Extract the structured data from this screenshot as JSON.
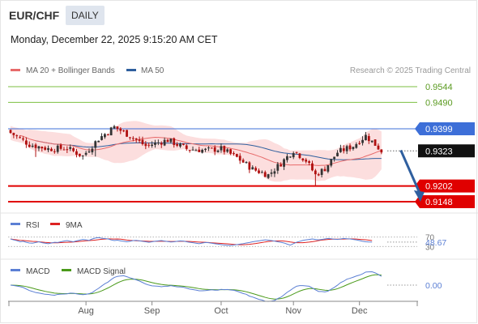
{
  "header": {
    "symbol": "EUR/CHF",
    "timeframe": "DAILY",
    "datetime": "Monday, December 22, 2025 9:15:20 AM CET"
  },
  "colors": {
    "ma20": "#e76a6a",
    "bands": "#fcdede",
    "ma50": "#2e5f9e",
    "target_green": "#7bbf41",
    "support_red": "#e00000",
    "pivot_blue": "#3d6fd8",
    "candle_up": "#333333",
    "candle_down": "#b01010",
    "rsi": "#5b7fd4",
    "rsi_ma": "#dd2222",
    "macd": "#5b7fd4",
    "macd_signal": "#4a9a1a",
    "arrow": "#2f5f9f"
  },
  "chart_data": {
    "type": "candlestick",
    "main": {
      "legend": [
        {
          "label": "MA 20 + Bollinger Bands",
          "color": "#e76a6a"
        },
        {
          "label": "MA 50",
          "color": "#2e5f9e"
        }
      ],
      "copyright": "Research © 2025 Trading Central",
      "ylim": [
        0.912,
        0.962
      ],
      "current_price": 0.9323,
      "levels": [
        {
          "label": "0.9544",
          "value": 0.9544,
          "kind": "resistance-target"
        },
        {
          "label": "0.9490",
          "value": 0.949,
          "kind": "resistance-target"
        },
        {
          "label": "0.9399",
          "value": 0.9399,
          "kind": "pivot"
        },
        {
          "label": "0.9323",
          "value": 0.9323,
          "kind": "last-price"
        },
        {
          "label": "0.9202",
          "value": 0.9202,
          "kind": "support-target"
        },
        {
          "label": "0.9148",
          "value": 0.9148,
          "kind": "support-target"
        }
      ],
      "x_ticks": [
        {
          "label": "Aug",
          "index": 24
        },
        {
          "label": "Sep",
          "index": 45
        },
        {
          "label": "Oct",
          "index": 67
        },
        {
          "label": "Nov",
          "index": 90
        },
        {
          "label": "Dec",
          "index": 111
        }
      ],
      "forecast": {
        "from_index": 119,
        "from": 0.9325,
        "to_index": 126,
        "to": 0.9162,
        "direction": "down"
      }
    },
    "rsi": {
      "legend": [
        {
          "label": "RSI",
          "color": "#5b7fd4"
        },
        {
          "label": "9MA",
          "color": "#dd2222"
        }
      ],
      "levels": [
        70,
        30
      ],
      "level_labels": [
        "70",
        "30"
      ],
      "current": 48.67,
      "current_label": "48.67",
      "ylim": [
        0,
        100
      ],
      "values": [
        62,
        58,
        55,
        50,
        52,
        48,
        45,
        44,
        47,
        50,
        46,
        44,
        42,
        45,
        48,
        47,
        50,
        53,
        55,
        52,
        50,
        54,
        57,
        60,
        58,
        56,
        62,
        66,
        68,
        65,
        64,
        62,
        58,
        55,
        57,
        54,
        52,
        50,
        52,
        55,
        56,
        54,
        52,
        50,
        48,
        50,
        52,
        54,
        55,
        53,
        51,
        49,
        50,
        52,
        54,
        53,
        50,
        48,
        46,
        44,
        42,
        45,
        47,
        46,
        44,
        42,
        40,
        38,
        36,
        35,
        34,
        36,
        38,
        40,
        42,
        45,
        47,
        50,
        52,
        54,
        56,
        58,
        57,
        55,
        53,
        50,
        48,
        45,
        40,
        36,
        42,
        48,
        52,
        56,
        58,
        60,
        62,
        60,
        58,
        60,
        62,
        64,
        63,
        61,
        60,
        62,
        64,
        63,
        62,
        60,
        58,
        55,
        52,
        50,
        49,
        48.67
      ]
    },
    "macd": {
      "legend": [
        {
          "label": "MACD",
          "color": "#5b7fd4"
        },
        {
          "label": "MACD Signal",
          "color": "#4a9a1a"
        }
      ],
      "current": 0.0,
      "current_label": "0.00",
      "ylim": [
        -1,
        1
      ]
    }
  }
}
